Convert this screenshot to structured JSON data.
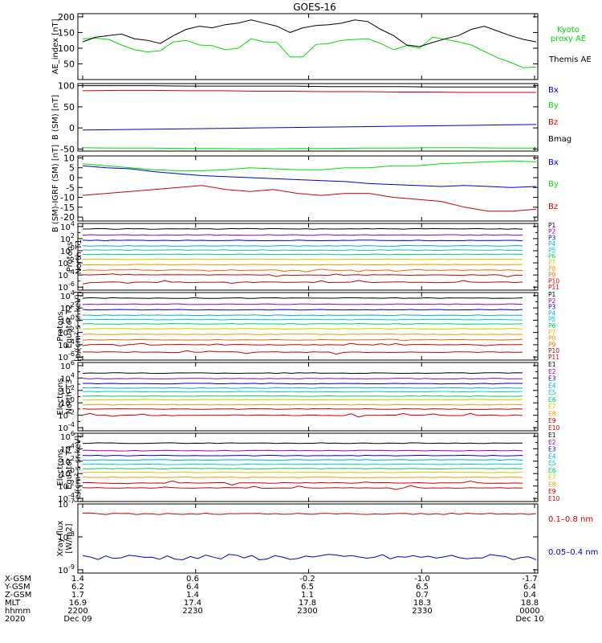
{
  "figure_title": "GOES-16",
  "colors": {
    "black": "#000000",
    "green": "#00dd00",
    "blue": "#0000cc",
    "red": "#cc0000",
    "p1": "#000000",
    "p2": "#9900aa",
    "p3": "#0000cc",
    "p4": "#00aaee",
    "p5": "#00cccc",
    "p6": "#00cc66",
    "p7": "#cccc00",
    "p8": "#ee9900",
    "p9": "#ee6600",
    "p10": "#cc0000",
    "p11": "#cc0000"
  },
  "chart_data": [
    {
      "type": "line",
      "ylabel": "AE_index [nT]",
      "ylim": [
        0,
        210
      ],
      "yticks": [
        "50",
        "100",
        "150",
        "200"
      ],
      "ytick_values": [
        50,
        100,
        150,
        200
      ],
      "series": [
        {
          "name": "Kyoto proxy AE",
          "legend": [
            "Kyoto",
            "proxy AE"
          ],
          "color": "#00dd00",
          "values": [
            130,
            132,
            128,
            110,
            95,
            88,
            92,
            120,
            125,
            110,
            108,
            95,
            100,
            130,
            120,
            118,
            72,
            72,
            112,
            115,
            125,
            128,
            130,
            115,
            95,
            108,
            100,
            135,
            128,
            120,
            110,
            90,
            70,
            55,
            38,
            40
          ]
        },
        {
          "name": "Themis AE",
          "legend": [
            "Themis AE"
          ],
          "color": "#000000",
          "values": [
            120,
            135,
            140,
            145,
            130,
            125,
            115,
            140,
            160,
            170,
            165,
            175,
            180,
            190,
            180,
            170,
            150,
            165,
            172,
            175,
            180,
            190,
            185,
            160,
            140,
            110,
            105,
            118,
            130,
            140,
            160,
            170,
            155,
            140,
            128,
            120
          ]
        }
      ]
    },
    {
      "type": "line",
      "ylabel": "B (SM) [nT]",
      "ylim": [
        -55,
        105
      ],
      "yticks": [
        "100",
        "50",
        "0",
        "-50"
      ],
      "ytick_values": [
        100,
        50,
        0,
        -50
      ],
      "series": [
        {
          "name": "Bx",
          "color": "#0000cc",
          "values": [
            -5,
            -4,
            -3,
            -2,
            -1,
            0,
            1,
            2,
            3,
            4,
            5,
            6,
            7,
            8
          ]
        },
        {
          "name": "By",
          "color": "#00dd00",
          "values": [
            -47,
            -48,
            -48,
            -49,
            -49,
            -50,
            -49,
            -49,
            -48,
            -48,
            -47,
            -47,
            -48,
            -48
          ]
        },
        {
          "name": "Bz",
          "color": "#cc0000",
          "values": [
            88,
            89,
            89,
            88,
            88,
            87,
            87,
            86,
            86,
            85,
            85,
            84,
            84,
            84
          ]
        },
        {
          "name": "Bmag",
          "color": "#000000",
          "values": [
            100,
            100,
            100,
            99,
            99,
            99,
            99,
            98,
            98,
            98,
            97,
            97,
            97,
            97
          ]
        }
      ]
    },
    {
      "type": "line",
      "ylabel": "B (SM)-IGRF (SM) [nT]",
      "ylim": [
        -22,
        11
      ],
      "yticks": [
        "10",
        "5",
        "0",
        "-5",
        "-10",
        "-15",
        "-20"
      ],
      "ytick_values": [
        10,
        5,
        0,
        -5,
        -10,
        -15,
        -20
      ],
      "series": [
        {
          "name": "Bx",
          "color": "#0000cc",
          "values": [
            6,
            5,
            4.5,
            3,
            2,
            1,
            0.5,
            0,
            -0.5,
            -1,
            -1.5,
            -2,
            -3,
            -3.5,
            -4,
            -4.5,
            -4,
            -4.5,
            -5,
            -4.5
          ]
        },
        {
          "name": "By",
          "color": "#00dd00",
          "values": [
            7,
            6,
            5,
            4,
            3.5,
            3.5,
            4,
            5,
            4.5,
            4,
            4,
            5,
            5,
            6,
            6,
            7,
            7.5,
            8,
            8.5,
            8
          ]
        },
        {
          "name": "Bz",
          "color": "#cc0000",
          "values": [
            -9,
            -8,
            -7,
            -6,
            -5,
            -4,
            -6,
            -7,
            -6,
            -8,
            -9,
            -8,
            -8,
            -10,
            -11,
            -12,
            -15,
            -17,
            -17,
            -16
          ]
        }
      ]
    },
    {
      "type": "line",
      "log": true,
      "ylabel": [
        "Protons",
        "North T1"
      ],
      "ylim": [
        -6.5,
        4.5
      ],
      "yticks": [
        "10^4",
        "10^2",
        "10^0",
        "10^-2",
        "10^-4",
        "10^-6"
      ],
      "ytick_values": [
        4,
        2,
        0,
        -2,
        -4,
        -6
      ],
      "series": [
        {
          "name": "P1",
          "color": "#000000",
          "level": 3.6
        },
        {
          "name": "P2",
          "color": "#9900aa",
          "level": 2.6
        },
        {
          "name": "P3",
          "color": "#0000cc",
          "level": 1.7
        },
        {
          "name": "P4",
          "color": "#00aaee",
          "level": 0.8
        },
        {
          "name": "P5",
          "color": "#00cccc",
          "level": 0.1
        },
        {
          "name": "P6",
          "color": "#00cc66",
          "level": -0.6
        },
        {
          "name": "P7",
          "color": "#cccc00",
          "level": -1.4
        },
        {
          "name": "P8",
          "color": "#ee9900",
          "level": -2.3
        },
        {
          "name": "P9",
          "color": "#ee6600",
          "level": -3.2
        },
        {
          "name": "P10",
          "color": "#cc0000",
          "level": -4.0
        },
        {
          "name": "P11",
          "color": "#cc0000",
          "level": -5.2
        }
      ]
    },
    {
      "type": "line",
      "log": true,
      "ylabel": [
        "Protons",
        "Equator T2",
        "[p/(cm²-s-sr-keV)]"
      ],
      "ylim": [
        -6.5,
        4.5
      ],
      "yticks": [
        "10^4",
        "10^2",
        "10^0",
        "10^-2",
        "10^-4",
        "10^-6"
      ],
      "ytick_values": [
        4,
        2,
        0,
        -2,
        -4,
        -6
      ],
      "series": [
        {
          "name": "P1",
          "color": "#000000",
          "level": 3.6
        },
        {
          "name": "P2",
          "color": "#9900aa",
          "level": 2.6
        },
        {
          "name": "P3",
          "color": "#0000cc",
          "level": 1.7
        },
        {
          "name": "P4",
          "color": "#00aaee",
          "level": 0.8
        },
        {
          "name": "P5",
          "color": "#00cccc",
          "level": 0.1
        },
        {
          "name": "P6",
          "color": "#00cc66",
          "level": -0.6
        },
        {
          "name": "P7",
          "color": "#cccc00",
          "level": -1.4
        },
        {
          "name": "P8",
          "color": "#ee9900",
          "level": -2.3
        },
        {
          "name": "P9",
          "color": "#ee6600",
          "level": -3.2
        },
        {
          "name": "P10",
          "color": "#cc0000",
          "level": -4.0
        },
        {
          "name": "P11",
          "color": "#cc0000",
          "level": -5.2
        }
      ]
    },
    {
      "type": "line",
      "log": true,
      "ylabel": [
        "Electrons",
        "North T3"
      ],
      "ylim": [
        -4.5,
        6.5
      ],
      "yticks": [
        "10^6",
        "10^4",
        "10^2",
        "10^0",
        "10^-2",
        "10^-4"
      ],
      "ytick_values": [
        6,
        4,
        2,
        0,
        -2,
        -4
      ],
      "series": [
        {
          "name": "E1",
          "color": "#000000",
          "level": 4.8
        },
        {
          "name": "E2",
          "color": "#9900aa",
          "level": 3.9
        },
        {
          "name": "E3",
          "color": "#0000cc",
          "level": 3.1
        },
        {
          "name": "E4",
          "color": "#00aaee",
          "level": 2.4
        },
        {
          "name": "E5",
          "color": "#00cccc",
          "level": 1.8
        },
        {
          "name": "E6",
          "color": "#00cc66",
          "level": 1.1
        },
        {
          "name": "E7",
          "color": "#cccc00",
          "level": 0.5
        },
        {
          "name": "E8",
          "color": "#ee9900",
          "level": -0.3
        },
        {
          "name": "E9",
          "color": "#cc0000",
          "level": -1.0
        },
        {
          "name": "E10",
          "color": "#cc0000",
          "level": -2.0
        }
      ]
    },
    {
      "type": "line",
      "log": true,
      "ylabel": [
        "Electrons",
        "Equator T4",
        "[e/(cm²-s-sr-keV)]"
      ],
      "ylim": [
        -4.5,
        6.5
      ],
      "yticks": [
        "10^6",
        "10^4",
        "10^2",
        "10^0",
        "10^-2",
        "10^-4"
      ],
      "ytick_values": [
        6,
        4,
        2,
        0,
        -2,
        -4
      ],
      "series": [
        {
          "name": "E1",
          "color": "#000000",
          "level": 4.9
        },
        {
          "name": "E2",
          "color": "#9900aa",
          "level": 3.7
        },
        {
          "name": "E3",
          "color": "#0000cc",
          "level": 2.9
        },
        {
          "name": "E4",
          "color": "#00aaee",
          "level": 2.2
        },
        {
          "name": "E5",
          "color": "#00cccc",
          "level": 1.5
        },
        {
          "name": "E6",
          "color": "#00cc66",
          "level": 0.8
        },
        {
          "name": "E7",
          "color": "#cccc00",
          "level": 0.2
        },
        {
          "name": "E8",
          "color": "#ee9900",
          "level": -0.6
        },
        {
          "name": "E9",
          "color": "#cc0000",
          "level": -1.5
        },
        {
          "name": "E10",
          "color": "#cc0000",
          "level": -2.3
        }
      ]
    },
    {
      "type": "line",
      "log": true,
      "ylabel": [
        "Xray flux",
        "[W/m2]"
      ],
      "ylim": [
        -9.1,
        -7.0
      ],
      "yticks": [
        "10^-7",
        "10^-8",
        "10^-9"
      ],
      "ytick_values": [
        -7,
        -8,
        -9
      ],
      "series": [
        {
          "name": "0.1–0.8 nm",
          "color": "#cc0000",
          "level": -7.3
        },
        {
          "name": "0.05–0.4 nm",
          "color": "#0000cc",
          "level": -8.62
        }
      ]
    }
  ],
  "x_axis": {
    "row_labels": [
      "X-GSM",
      "Y-GSM",
      "Z-GSM",
      "MLT",
      "hhmm",
      "2020"
    ],
    "columns": [
      [
        "1.4",
        "6.2",
        "1.7",
        "16.9",
        "2200",
        "Dec 09"
      ],
      [
        "0.6",
        "6.4",
        "1.4",
        "17.4",
        "2230",
        ""
      ],
      [
        "-0.2",
        "6.5",
        "1.1",
        "17.8",
        "2300",
        ""
      ],
      [
        "-1.0",
        "6.5",
        "0.7",
        "18.3",
        "2330",
        ""
      ],
      [
        "-1.7",
        "6.4",
        "0.4",
        "18.8",
        "0000",
        "Dec 10"
      ]
    ]
  }
}
